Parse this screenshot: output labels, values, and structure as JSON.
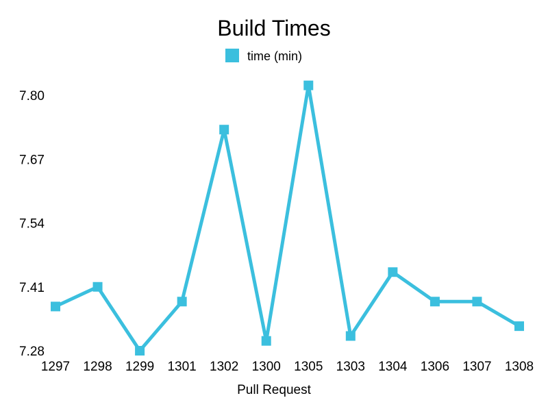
{
  "chart_data": {
    "type": "line",
    "title": "Build Times",
    "xlabel": "Pull Request",
    "ylabel": "",
    "categories": [
      "1297",
      "1298",
      "1299",
      "1301",
      "1302",
      "1300",
      "1305",
      "1303",
      "1304",
      "1306",
      "1307",
      "1308"
    ],
    "series": [
      {
        "name": "time (min)",
        "values": [
          7.37,
          7.41,
          7.28,
          7.38,
          7.73,
          7.3,
          7.82,
          7.31,
          7.44,
          7.38,
          7.38,
          7.33
        ]
      }
    ],
    "yticks": [
      "7.28",
      "7.41",
      "7.54",
      "7.67",
      "7.80"
    ],
    "ylim": [
      7.28,
      7.8
    ],
    "grid": false,
    "legend": "top-center",
    "color": "#3bbfde"
  }
}
